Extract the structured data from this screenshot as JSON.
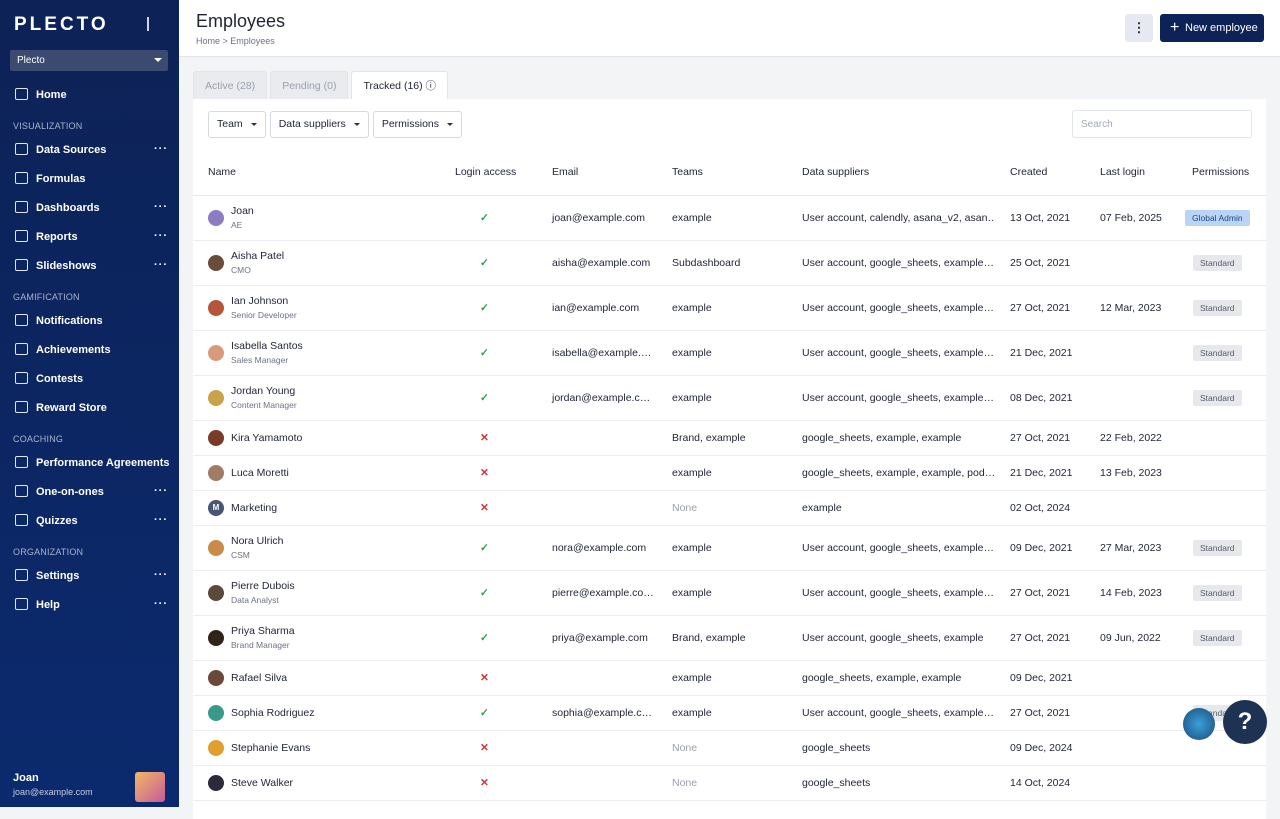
{
  "sidebar": {
    "logo": "PLECTO",
    "org_select": "Plecto",
    "sections": [
      {
        "title": null,
        "items": [
          {
            "label": "Home",
            "more": false
          }
        ]
      },
      {
        "title": "VISUALIZATION",
        "items": [
          {
            "label": "Data Sources",
            "more": true
          },
          {
            "label": "Formulas",
            "more": false
          },
          {
            "label": "Dashboards",
            "more": true
          },
          {
            "label": "Reports",
            "more": true
          },
          {
            "label": "Slideshows",
            "more": true
          }
        ]
      },
      {
        "title": "GAMIFICATION",
        "items": [
          {
            "label": "Notifications",
            "more": false
          },
          {
            "label": "Achievements",
            "more": false
          },
          {
            "label": "Contests",
            "more": false
          },
          {
            "label": "Reward Store",
            "more": false
          }
        ]
      },
      {
        "title": "COACHING",
        "items": [
          {
            "label": "Performance Agreements",
            "more": false
          },
          {
            "label": "One-on-ones",
            "more": true
          },
          {
            "label": "Quizzes",
            "more": true
          }
        ]
      },
      {
        "title": "ORGANIZATION",
        "items": [
          {
            "label": "Settings",
            "more": true
          },
          {
            "label": "Help",
            "more": true
          }
        ]
      }
    ],
    "user": {
      "name": "Joan",
      "email": "joan@example.com"
    }
  },
  "header": {
    "title": "Employees",
    "breadcrumb": [
      "Home",
      "Employees"
    ],
    "new_button": "New employee"
  },
  "tabs": [
    "Active (28)",
    "Pending (0)",
    "Tracked (16)"
  ],
  "filters": [
    "Team",
    "Data suppliers",
    "Permissions"
  ],
  "search_placeholder": "Search",
  "table": {
    "columns": [
      "Name",
      "Login access",
      "Email",
      "Teams",
      "Data suppliers",
      "Created",
      "Last login",
      "Permissions"
    ],
    "rows": [
      {
        "name": "Joan",
        "subtitle": "AE",
        "login": true,
        "email": "joan@example.com",
        "teams": "example",
        "suppliers": "User account, calendly, asana_v2, asan…",
        "created": "13 Oct, 2021",
        "last_login": "07 Feb, 2025",
        "permissions": "Global Admin",
        "avatar_color": "#8e7cc3"
      },
      {
        "name": "Aisha Patel",
        "subtitle": "CMO",
        "login": true,
        "email": "aisha@example.com",
        "teams": "Subdashboard",
        "suppliers": "User account, google_sheets, example…",
        "created": "25 Oct, 2021",
        "last_login": null,
        "permissions": "Standard",
        "avatar_color": "#6b4b3a"
      },
      {
        "name": "Ian Johnson",
        "subtitle": "Senior Developer",
        "login": true,
        "email": "ian@example.com",
        "teams": "example",
        "suppliers": "User account, google_sheets, example…",
        "created": "27 Oct, 2021",
        "last_login": "12 Mar, 2023",
        "permissions": "Standard",
        "avatar_color": "#b5563c"
      },
      {
        "name": "Isabella Santos",
        "subtitle": "Sales Manager",
        "login": true,
        "email": "isabella@example.…",
        "teams": "example",
        "suppliers": "User account, google_sheets, example…",
        "created": "21 Dec, 2021",
        "last_login": null,
        "permissions": "Standard",
        "avatar_color": "#d99a7a"
      },
      {
        "name": "Jordan Young",
        "subtitle": "Content Manager",
        "login": true,
        "email": "jordan@example.c…",
        "teams": "example",
        "suppliers": "User account, google_sheets, example…",
        "created": "08 Dec, 2021",
        "last_login": null,
        "permissions": "Standard",
        "avatar_color": "#c9a24a"
      },
      {
        "name": "Kira Yamamoto",
        "subtitle": null,
        "login": false,
        "email": null,
        "teams": "Brand, example",
        "suppliers": "google_sheets, example, example",
        "created": "27 Oct, 2021",
        "last_login": "22 Feb, 2022",
        "permissions": null,
        "avatar_color": "#7a3b26"
      },
      {
        "name": "Luca Moretti",
        "subtitle": null,
        "login": false,
        "email": null,
        "teams": "example",
        "suppliers": "google_sheets, example, example, pod…",
        "created": "21 Dec, 2021",
        "last_login": "13 Feb, 2023",
        "permissions": null,
        "avatar_color": "#a37a63"
      },
      {
        "name": "Marketing",
        "subtitle": null,
        "login": false,
        "email": null,
        "teams": "None",
        "suppliers": "example",
        "created": "02 Oct, 2024",
        "last_login": null,
        "permissions": null,
        "avatar_color": "#4a5573",
        "avatar_letter": "M"
      },
      {
        "name": "Nora Ulrich",
        "subtitle": "CSM",
        "login": true,
        "email": "nora@example.com",
        "teams": "example",
        "suppliers": "User account, google_sheets, example…",
        "created": "09 Dec, 2021",
        "last_login": "27 Mar, 2023",
        "permissions": "Standard",
        "avatar_color": "#c98a4a"
      },
      {
        "name": "Pierre Dubois",
        "subtitle": "Data Analyst",
        "login": true,
        "email": "pierre@example.co…",
        "teams": "example",
        "suppliers": "User account, google_sheets, example…",
        "created": "27 Oct, 2021",
        "last_login": "14 Feb, 2023",
        "permissions": "Standard",
        "avatar_color": "#5a4a3a"
      },
      {
        "name": "Priya Sharma",
        "subtitle": "Brand Manager",
        "login": true,
        "email": "priya@example.com",
        "teams": "Brand, example",
        "suppliers": "User account, google_sheets, example",
        "created": "27 Oct, 2021",
        "last_login": "09 Jun, 2022",
        "permissions": "Standard",
        "avatar_color": "#2f2418"
      },
      {
        "name": "Rafael Silva",
        "subtitle": null,
        "login": false,
        "email": null,
        "teams": "example",
        "suppliers": "google_sheets, example, example",
        "created": "09 Dec, 2021",
        "last_login": null,
        "permissions": null,
        "avatar_color": "#6a4a36"
      },
      {
        "name": "Sophia Rodriguez",
        "subtitle": null,
        "login": true,
        "email": "sophia@example.c…",
        "teams": "example",
        "suppliers": "User account, google_sheets, example…",
        "created": "27 Oct, 2021",
        "last_login": null,
        "permissions": "Standard",
        "avatar_color": "#3a9a8a"
      },
      {
        "name": "Stephanie Evans",
        "subtitle": null,
        "login": false,
        "email": null,
        "teams": "None",
        "suppliers": "google_sheets",
        "created": "09 Dec, 2024",
        "last_login": null,
        "permissions": null,
        "avatar_color": "#e0a030"
      },
      {
        "name": "Steve Walker",
        "subtitle": null,
        "login": false,
        "email": null,
        "teams": "None",
        "suppliers": "google_sheets",
        "created": "14 Oct, 2024",
        "last_login": null,
        "permissions": null,
        "avatar_color": "#2a2a3a"
      }
    ]
  }
}
